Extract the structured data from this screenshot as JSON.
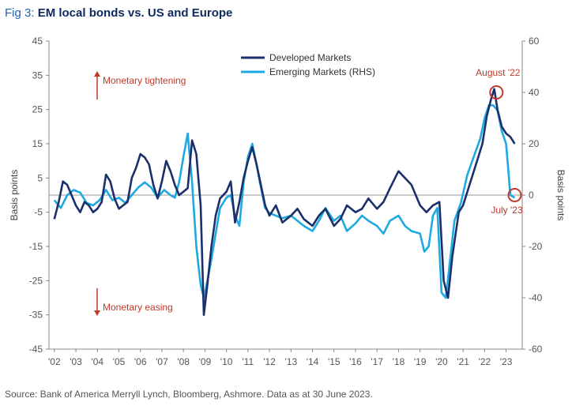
{
  "figure": {
    "title_prefix": "Fig 3:",
    "title": "EM local bonds vs. US and Europe",
    "source": "Source: Bank of America Merryll Lynch, Bloomberg, Ashmore. Data as at 30 June 2023."
  },
  "chart_data": {
    "type": "line",
    "xlim": [
      2001.75,
      2023.75
    ],
    "x_tick_labels": [
      "'02",
      "'03",
      "'04",
      "'05",
      "'06",
      "'07",
      "'08",
      "'09",
      "'10",
      "'11",
      "'12",
      "'13",
      "'14",
      "'15",
      "'16",
      "'17",
      "'18",
      "'19",
      "'20",
      "'21",
      "'22",
      "'23"
    ],
    "y_left": {
      "label": "Basis points",
      "lim": [
        -45,
        45
      ],
      "ticks": [
        45,
        35,
        25,
        15,
        5,
        -5,
        -15,
        -25,
        -35,
        -45
      ]
    },
    "y_right": {
      "label": "Basis points",
      "lim": [
        -60,
        60
      ],
      "ticks": [
        60,
        40,
        20,
        0,
        -20,
        -40,
        -60
      ]
    },
    "grid": false,
    "legend_position": "top-center",
    "series": [
      {
        "name": "Developed Markets",
        "axis": "left",
        "color": "#1b2f6b",
        "x": [
          2002.0,
          2002.2,
          2002.4,
          2002.6,
          2002.8,
          2003.0,
          2003.2,
          2003.4,
          2003.6,
          2003.8,
          2004.0,
          2004.2,
          2004.4,
          2004.6,
          2004.8,
          2005.0,
          2005.2,
          2005.4,
          2005.6,
          2005.8,
          2006.0,
          2006.2,
          2006.4,
          2006.6,
          2006.8,
          2007.0,
          2007.2,
          2007.4,
          2007.6,
          2007.8,
          2008.0,
          2008.2,
          2008.4,
          2008.6,
          2008.8,
          2008.95,
          2009.1,
          2009.3,
          2009.5,
          2009.7,
          2010.0,
          2010.2,
          2010.4,
          2010.6,
          2010.8,
          2011.0,
          2011.2,
          2011.4,
          2011.6,
          2011.8,
          2012.0,
          2012.3,
          2012.6,
          2013.0,
          2013.3,
          2013.6,
          2014.0,
          2014.3,
          2014.6,
          2015.0,
          2015.3,
          2015.6,
          2016.0,
          2016.3,
          2016.6,
          2017.0,
          2017.3,
          2017.6,
          2018.0,
          2018.3,
          2018.6,
          2019.0,
          2019.3,
          2019.6,
          2019.9,
          2020.1,
          2020.3,
          2020.5,
          2020.8,
          2021.0,
          2021.3,
          2021.6,
          2021.9,
          2022.1,
          2022.3,
          2022.45,
          2022.6,
          2022.8,
          2023.0,
          2023.2,
          2023.4
        ],
        "y": [
          -7,
          -2,
          4,
          3,
          0,
          -3,
          -5,
          -2,
          -3,
          -5,
          -4,
          -2,
          6,
          4,
          -1,
          -4,
          -3,
          -2,
          5,
          8,
          12,
          11,
          9,
          3,
          -1,
          4,
          10,
          7,
          3,
          0,
          1,
          2,
          16,
          12,
          -3,
          -35,
          -27,
          -15,
          -6,
          -1,
          1,
          4,
          -8,
          -2,
          5,
          10,
          14,
          9,
          3,
          -3,
          -6,
          -3,
          -8,
          -6,
          -4,
          -7,
          -9,
          -6,
          -4,
          -9,
          -7,
          -3,
          -5,
          -4,
          -1,
          -4,
          -2,
          2,
          7,
          5,
          3,
          -3,
          -5,
          -3,
          -2,
          -25,
          -30,
          -18,
          -5,
          -3,
          3,
          9,
          15,
          23,
          28,
          31,
          25,
          20,
          18,
          17,
          15
        ]
      },
      {
        "name": "Emerging Markets (RHS)",
        "axis": "right",
        "color": "#1fa9e1",
        "x": [
          2002.0,
          2002.3,
          2002.6,
          2002.9,
          2003.2,
          2003.5,
          2003.8,
          2004.1,
          2004.4,
          2004.7,
          2005.0,
          2005.3,
          2005.6,
          2005.9,
          2006.2,
          2006.5,
          2006.8,
          2007.1,
          2007.4,
          2007.6,
          2007.8,
          2008.0,
          2008.2,
          2008.4,
          2008.6,
          2008.8,
          2008.95,
          2009.1,
          2009.3,
          2009.5,
          2009.7,
          2010.0,
          2010.2,
          2010.4,
          2010.6,
          2010.8,
          2011.0,
          2011.2,
          2011.4,
          2011.6,
          2011.8,
          2012.0,
          2012.3,
          2012.6,
          2013.0,
          2013.3,
          2013.6,
          2014.0,
          2014.3,
          2014.6,
          2015.0,
          2015.3,
          2015.6,
          2016.0,
          2016.3,
          2016.6,
          2017.0,
          2017.3,
          2017.6,
          2018.0,
          2018.3,
          2018.6,
          2019.0,
          2019.2,
          2019.4,
          2019.6,
          2019.8,
          2020.0,
          2020.2,
          2020.4,
          2020.6,
          2020.9,
          2021.2,
          2021.5,
          2021.8,
          2022.0,
          2022.2,
          2022.4,
          2022.6,
          2022.8,
          2023.0,
          2023.2,
          2023.4
        ],
        "y": [
          -2,
          -5,
          0,
          2,
          1,
          -3,
          -4,
          -2,
          2,
          -2,
          -1,
          -3,
          0,
          3,
          5,
          3,
          -1,
          2,
          0,
          -1,
          5,
          15,
          24,
          5,
          -20,
          -35,
          -40,
          -34,
          -25,
          -15,
          -5,
          -1,
          0,
          -8,
          -12,
          5,
          15,
          20,
          12,
          3,
          -5,
          -7,
          -8,
          -9,
          -8,
          -10,
          -12,
          -14,
          -10,
          -5,
          -10,
          -8,
          -14,
          -11,
          -8,
          -10,
          -12,
          -15,
          -10,
          -8,
          -12,
          -14,
          -15,
          -22,
          -20,
          -8,
          -5,
          -38,
          -40,
          -25,
          -10,
          -3,
          8,
          15,
          22,
          30,
          35,
          35,
          33,
          25,
          20,
          0,
          -1
        ]
      }
    ],
    "annotations": [
      {
        "text": "Monetary tightening",
        "arrow": "up"
      },
      {
        "text": "Monetary easing",
        "arrow": "down"
      },
      {
        "text": "August '22",
        "x": 2022.55,
        "y_left": 30
      },
      {
        "text": "July '23",
        "x": 2023.4,
        "y_left": 0
      }
    ]
  }
}
